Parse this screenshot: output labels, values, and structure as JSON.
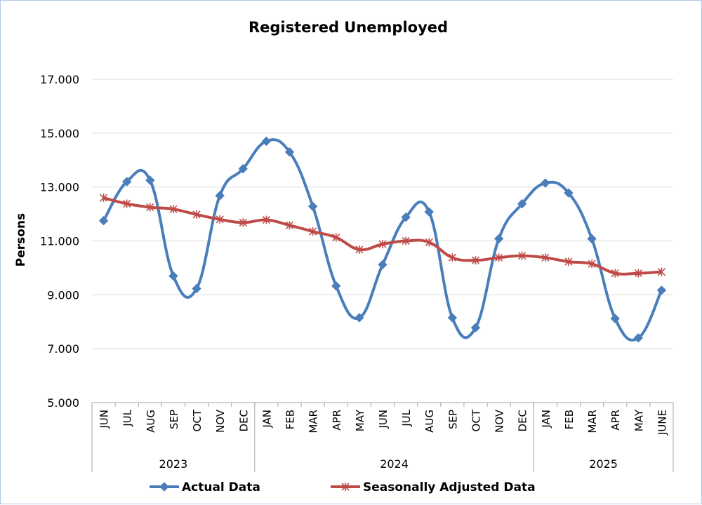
{
  "chart_data": {
    "type": "line",
    "title": "Registered Unemployed",
    "ylabel": "Persons",
    "ylim": [
      5000,
      17000
    ],
    "yticks": [
      5000,
      7000,
      9000,
      11000,
      13000,
      15000,
      17000
    ],
    "ytick_labels": [
      "5.000",
      "7.000",
      "9.000",
      "11.000",
      "13.000",
      "15.000",
      "17.000"
    ],
    "grid": true,
    "legend": "bottom",
    "categories": [
      "JUN",
      "JUL",
      "AUG",
      "SEP",
      "OCT",
      "NOV",
      "DEC",
      "JAN",
      "FEB",
      "MAR",
      "APR",
      "MAY",
      "JUN",
      "JUL",
      "AUG",
      "SEP",
      "OCT",
      "NOV",
      "DEC",
      "JAN",
      "FEB",
      "MAR",
      "APR",
      "MAY",
      "JUNE"
    ],
    "groups": [
      {
        "label": "2023",
        "start": 0,
        "end": 6
      },
      {
        "label": "2024",
        "start": 7,
        "end": 18
      },
      {
        "label": "2025",
        "start": 19,
        "end": 24
      }
    ],
    "series": [
      {
        "name": "Actual Data",
        "color": "#4a7ebb",
        "marker": "diamond",
        "values": [
          11750,
          13200,
          13250,
          9700,
          9230,
          12680,
          13680,
          14700,
          14300,
          12280,
          9330,
          8150,
          10120,
          11880,
          12080,
          8150,
          7780,
          11080,
          12380,
          13150,
          12780,
          11080,
          8120,
          7400,
          9170
        ]
      },
      {
        "name": "Seasonally Adjusted Data",
        "color": "#be4b48",
        "marker": "star",
        "values": [
          12600,
          12380,
          12250,
          12180,
          11980,
          11800,
          11680,
          11780,
          11580,
          11350,
          11130,
          10680,
          10880,
          11000,
          10950,
          10380,
          10280,
          10380,
          10450,
          10380,
          10230,
          10150,
          9800,
          9800,
          9850
        ]
      }
    ]
  }
}
